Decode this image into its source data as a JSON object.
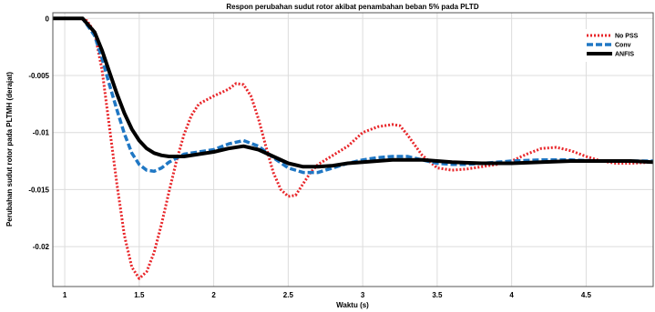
{
  "chart_data": {
    "type": "line",
    "title": "Respon perubahan sudut rotor akibat penambahan beban 5% pada PLTD",
    "xlabel": "Waktu (s)",
    "ylabel": "Perubahan sudut rotor pada PLTMH (derajat)",
    "xlim": [
      0.92,
      4.95
    ],
    "ylim": [
      -0.0235,
      0.0005
    ],
    "x_ticks": [
      1,
      1.5,
      2,
      2.5,
      3,
      3.5,
      4,
      4.5
    ],
    "x_tick_labels": [
      "1",
      "1.5",
      "2",
      "2.5",
      "3",
      "3.5",
      "4",
      "4.5"
    ],
    "y_ticks": [
      0,
      -0.005,
      -0.01,
      -0.015,
      -0.02
    ],
    "y_tick_labels": [
      "0",
      "-0.005",
      "-0.01",
      "-0.015",
      "-0.02"
    ],
    "grid": true,
    "legend_position": "top-right",
    "series": [
      {
        "name": "No PSS",
        "color": "#e8262a",
        "style": "dotted",
        "points": [
          [
            0.92,
            0
          ],
          [
            1.1,
            0
          ],
          [
            1.15,
            -0.0002
          ],
          [
            1.2,
            -0.0012
          ],
          [
            1.25,
            -0.0045
          ],
          [
            1.3,
            -0.0095
          ],
          [
            1.35,
            -0.0145
          ],
          [
            1.4,
            -0.019
          ],
          [
            1.45,
            -0.0218
          ],
          [
            1.5,
            -0.0228
          ],
          [
            1.55,
            -0.0222
          ],
          [
            1.6,
            -0.0205
          ],
          [
            1.65,
            -0.018
          ],
          [
            1.7,
            -0.0152
          ],
          [
            1.75,
            -0.0125
          ],
          [
            1.8,
            -0.0102
          ],
          [
            1.85,
            -0.0085
          ],
          [
            1.9,
            -0.0075
          ],
          [
            2.0,
            -0.0068
          ],
          [
            2.1,
            -0.0062
          ],
          [
            2.15,
            -0.0057
          ],
          [
            2.2,
            -0.0058
          ],
          [
            2.25,
            -0.0068
          ],
          [
            2.3,
            -0.0088
          ],
          [
            2.35,
            -0.0112
          ],
          [
            2.4,
            -0.0135
          ],
          [
            2.45,
            -0.015
          ],
          [
            2.5,
            -0.0156
          ],
          [
            2.55,
            -0.0155
          ],
          [
            2.6,
            -0.0145
          ],
          [
            2.65,
            -0.0135
          ],
          [
            2.7,
            -0.0128
          ],
          [
            2.8,
            -0.012
          ],
          [
            2.9,
            -0.0112
          ],
          [
            3.0,
            -0.01
          ],
          [
            3.1,
            -0.0095
          ],
          [
            3.2,
            -0.0093
          ],
          [
            3.25,
            -0.0094
          ],
          [
            3.3,
            -0.0102
          ],
          [
            3.4,
            -0.012
          ],
          [
            3.5,
            -0.0131
          ],
          [
            3.6,
            -0.0133
          ],
          [
            3.7,
            -0.0132
          ],
          [
            3.8,
            -0.013
          ],
          [
            3.9,
            -0.0128
          ],
          [
            4.0,
            -0.0125
          ],
          [
            4.1,
            -0.0119
          ],
          [
            4.2,
            -0.0114
          ],
          [
            4.3,
            -0.0113
          ],
          [
            4.4,
            -0.0116
          ],
          [
            4.5,
            -0.0121
          ],
          [
            4.6,
            -0.0125
          ],
          [
            4.7,
            -0.0127
          ],
          [
            4.8,
            -0.0127
          ],
          [
            4.95,
            -0.0126
          ]
        ]
      },
      {
        "name": "Conv",
        "color": "#1f77c4",
        "style": "dashed",
        "points": [
          [
            0.92,
            0
          ],
          [
            1.12,
            0
          ],
          [
            1.2,
            -0.0015
          ],
          [
            1.25,
            -0.0035
          ],
          [
            1.3,
            -0.0058
          ],
          [
            1.35,
            -0.008
          ],
          [
            1.4,
            -0.0101
          ],
          [
            1.45,
            -0.0118
          ],
          [
            1.5,
            -0.0128
          ],
          [
            1.55,
            -0.0133
          ],
          [
            1.6,
            -0.0134
          ],
          [
            1.65,
            -0.0131
          ],
          [
            1.7,
            -0.0126
          ],
          [
            1.8,
            -0.0119
          ],
          [
            1.9,
            -0.0117
          ],
          [
            2.0,
            -0.0115
          ],
          [
            2.1,
            -0.011
          ],
          [
            2.2,
            -0.0107
          ],
          [
            2.3,
            -0.0112
          ],
          [
            2.4,
            -0.0122
          ],
          [
            2.5,
            -0.0131
          ],
          [
            2.6,
            -0.0135
          ],
          [
            2.7,
            -0.0135
          ],
          [
            2.8,
            -0.0131
          ],
          [
            2.9,
            -0.0127
          ],
          [
            3.0,
            -0.0124
          ],
          [
            3.1,
            -0.0122
          ],
          [
            3.2,
            -0.0121
          ],
          [
            3.3,
            -0.0121
          ],
          [
            3.4,
            -0.0124
          ],
          [
            3.5,
            -0.0127
          ],
          [
            3.6,
            -0.0128
          ],
          [
            3.7,
            -0.0128
          ],
          [
            3.8,
            -0.0127
          ],
          [
            3.9,
            -0.0126
          ],
          [
            4.0,
            -0.0125
          ],
          [
            4.2,
            -0.0124
          ],
          [
            4.4,
            -0.0124
          ],
          [
            4.6,
            -0.0125
          ],
          [
            4.8,
            -0.0125
          ],
          [
            4.95,
            -0.0125
          ]
        ]
      },
      {
        "name": "ANFIS",
        "color": "#000000",
        "style": "solid",
        "points": [
          [
            0.92,
            0
          ],
          [
            1.12,
            0
          ],
          [
            1.2,
            -0.0012
          ],
          [
            1.25,
            -0.0028
          ],
          [
            1.3,
            -0.0047
          ],
          [
            1.35,
            -0.0066
          ],
          [
            1.4,
            -0.0083
          ],
          [
            1.45,
            -0.0097
          ],
          [
            1.5,
            -0.0107
          ],
          [
            1.55,
            -0.0114
          ],
          [
            1.6,
            -0.0118
          ],
          [
            1.65,
            -0.012
          ],
          [
            1.7,
            -0.0121
          ],
          [
            1.8,
            -0.0121
          ],
          [
            1.9,
            -0.0119
          ],
          [
            2.0,
            -0.0117
          ],
          [
            2.1,
            -0.0114
          ],
          [
            2.2,
            -0.0112
          ],
          [
            2.3,
            -0.0115
          ],
          [
            2.4,
            -0.0121
          ],
          [
            2.5,
            -0.0127
          ],
          [
            2.6,
            -0.013
          ],
          [
            2.7,
            -0.013
          ],
          [
            2.8,
            -0.0129
          ],
          [
            2.9,
            -0.0127
          ],
          [
            3.0,
            -0.0126
          ],
          [
            3.2,
            -0.0124
          ],
          [
            3.4,
            -0.0124
          ],
          [
            3.6,
            -0.0126
          ],
          [
            3.8,
            -0.0127
          ],
          [
            4.0,
            -0.0127
          ],
          [
            4.2,
            -0.0126
          ],
          [
            4.4,
            -0.0125
          ],
          [
            4.6,
            -0.0125
          ],
          [
            4.8,
            -0.0125
          ],
          [
            4.95,
            -0.0126
          ]
        ]
      }
    ]
  }
}
